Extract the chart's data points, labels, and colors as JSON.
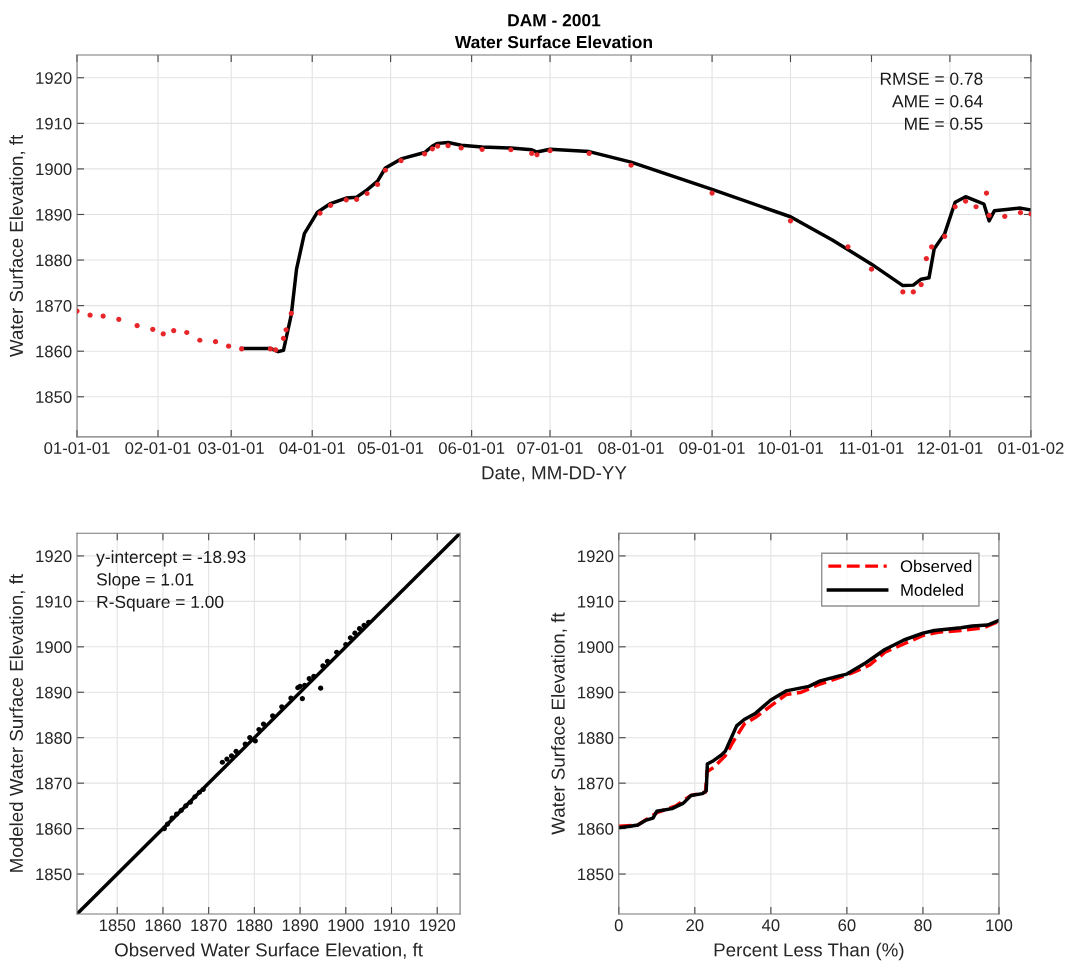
{
  "chart_data": [
    {
      "type": "line",
      "title": "DAM - 2001",
      "subtitle": "Water Surface Elevation",
      "xlabel": "Date, MM-DD-YY",
      "ylabel": "Water Surface Elevation, ft",
      "annotations": [
        "RMSE = 0.78",
        "AME = 0.64",
        "ME = 0.55"
      ],
      "xlim": [
        "2001-01-01",
        "2002-01-01"
      ],
      "xticks": [
        {
          "value": "2001-01-01",
          "label": "01-01-01"
        },
        {
          "value": "2001-02-01",
          "label": "02-01-01"
        },
        {
          "value": "2001-03-01",
          "label": "03-01-01"
        },
        {
          "value": "2001-04-01",
          "label": "04-01-01"
        },
        {
          "value": "2001-05-01",
          "label": "05-01-01"
        },
        {
          "value": "2001-06-01",
          "label": "06-01-01"
        },
        {
          "value": "2001-07-01",
          "label": "07-01-01"
        },
        {
          "value": "2001-08-01",
          "label": "08-01-01"
        },
        {
          "value": "2001-09-01",
          "label": "09-01-01"
        },
        {
          "value": "2001-10-01",
          "label": "10-01-01"
        },
        {
          "value": "2001-11-01",
          "label": "11-01-01"
        },
        {
          "value": "2001-12-01",
          "label": "12-01-01"
        },
        {
          "value": "2002-01-01",
          "label": "01-01-02"
        }
      ],
      "ylim": [
        1841.2,
        1925
      ],
      "yticks": [
        1850,
        1860,
        1870,
        1880,
        1890,
        1900,
        1910,
        1920
      ],
      "grid": true,
      "series": [
        {
          "color": "#000000",
          "line_style": "solid",
          "x": [
            "2001-03-05",
            "2001-03-16",
            "2001-03-19",
            "2001-03-21",
            "2001-03-24",
            "2001-03-26",
            "2001-03-29",
            "2001-04-03",
            "2001-04-08",
            "2001-04-14",
            "2001-04-18",
            "2001-04-22",
            "2001-04-26",
            "2001-04-29",
            "2001-05-05",
            "2001-05-14",
            "2001-05-17",
            "2001-05-19",
            "2001-05-23",
            "2001-05-28",
            "2001-06-05",
            "2001-06-16",
            "2001-06-24",
            "2001-06-26",
            "2001-07-01",
            "2001-07-16",
            "2001-08-01",
            "2001-09-01",
            "2001-10-01",
            "2001-10-17",
            "2001-11-01",
            "2001-11-13",
            "2001-11-17",
            "2001-11-20",
            "2001-11-23",
            "2001-11-25",
            "2001-11-29",
            "2001-12-03",
            "2001-12-07",
            "2001-12-11",
            "2001-12-14",
            "2001-12-16",
            "2001-12-18",
            "2001-12-28",
            "2002-01-01"
          ],
          "values": [
            1860.6,
            1860.6,
            1859.9,
            1860.2,
            1868,
            1878,
            1885.8,
            1890.5,
            1892.4,
            1893.6,
            1893.8,
            1895.4,
            1897.3,
            1900.2,
            1902.2,
            1903.6,
            1905,
            1905.6,
            1905.8,
            1905.2,
            1904.8,
            1904.6,
            1904.2,
            1903.7,
            1904.3,
            1903.8,
            1901.5,
            1895.5,
            1889.5,
            1884.4,
            1879.1,
            1874.4,
            1874.5,
            1875.8,
            1876.1,
            1882.5,
            1885.8,
            1892.7,
            1893.9,
            1893,
            1892.3,
            1888.6,
            1890.8,
            1891.4,
            1891
          ]
        },
        {
          "type": "scatter",
          "color": "#e8262a",
          "marker": "circle",
          "x": [
            "2001-01-01",
            "2001-01-06",
            "2001-01-11",
            "2001-01-17",
            "2001-01-24",
            "2001-01-30",
            "2001-02-03",
            "2001-02-07",
            "2001-02-12",
            "2001-02-17",
            "2001-02-23",
            "2001-02-28",
            "2001-03-05",
            "2001-03-16",
            "2001-03-18",
            "2001-03-21",
            "2001-03-22",
            "2001-03-24",
            "2001-04-04",
            "2001-04-08",
            "2001-04-14",
            "2001-04-18",
            "2001-04-22",
            "2001-04-26",
            "2001-04-29",
            "2001-05-05",
            "2001-05-14",
            "2001-05-17",
            "2001-05-19",
            "2001-05-23",
            "2001-05-28",
            "2001-06-05",
            "2001-06-16",
            "2001-06-24",
            "2001-06-26",
            "2001-07-01",
            "2001-07-16",
            "2001-08-01",
            "2001-09-01",
            "2001-10-01",
            "2001-10-23",
            "2001-11-01",
            "2001-11-13",
            "2001-11-17",
            "2001-11-20",
            "2001-11-22",
            "2001-11-24",
            "2001-11-29",
            "2001-12-03",
            "2001-12-07",
            "2001-12-11",
            "2001-12-15",
            "2001-12-16",
            "2001-12-22",
            "2001-12-28",
            "2002-01-01"
          ],
          "values": [
            1868.8,
            1867.9,
            1867.7,
            1867.0,
            1865.6,
            1864.8,
            1863.8,
            1864.5,
            1864.1,
            1862.4,
            1862.1,
            1861.1,
            1860.5,
            1860.5,
            1860.3,
            1862.8,
            1864.7,
            1868.3,
            1890.3,
            1892.0,
            1893.2,
            1893.3,
            1894.6,
            1896.6,
            1899.7,
            1901.8,
            1903.3,
            1904.4,
            1905.0,
            1905.1,
            1904.6,
            1904.3,
            1904.2,
            1903.4,
            1903.1,
            1904.0,
            1903.4,
            1900.8,
            1894.7,
            1888.6,
            1882.9,
            1878.0,
            1873.0,
            1873.0,
            1874.6,
            1880.3,
            1882.9,
            1885.2,
            1891.7,
            1892.9,
            1891.7,
            1894.7,
            1889.8,
            1889.6,
            1890.4,
            1890.1
          ]
        }
      ]
    },
    {
      "type": "scatter",
      "xlabel": "Observed Water Surface Elevation, ft",
      "ylabel": "Modeled Water Surface Elevation, ft",
      "annotations": [
        "y-intercept = -18.93",
        "Slope = 1.01",
        "R-Square = 1.00"
      ],
      "xlim": [
        1841.2,
        1925
      ],
      "xticks": [
        1850,
        1860,
        1870,
        1880,
        1890,
        1900,
        1910,
        1920
      ],
      "ylim": [
        1841.2,
        1925
      ],
      "yticks": [
        1850,
        1860,
        1870,
        1880,
        1890,
        1900,
        1910,
        1920
      ],
      "grid": true,
      "series": [
        {
          "color": "#000000",
          "marker": "circle",
          "x": [
            1860.3,
            1861,
            1862,
            1863,
            1864,
            1865,
            1866,
            1867,
            1868,
            1868.8,
            1873,
            1874,
            1875,
            1876,
            1878,
            1879,
            1880.2,
            1881,
            1882,
            1884,
            1886,
            1888,
            1889.5,
            1890,
            1890.5,
            1891,
            1892,
            1893,
            1894.5,
            1895,
            1896,
            1898,
            1900,
            1901,
            1902,
            1903,
            1904,
            1905
          ],
          "values": [
            1860,
            1861,
            1862.3,
            1863.2,
            1864,
            1865,
            1865.8,
            1867,
            1868,
            1868.6,
            1874.6,
            1875.3,
            1876,
            1877,
            1878.6,
            1880,
            1879.3,
            1881.8,
            1883,
            1884.8,
            1886.8,
            1888.7,
            1891,
            1891.3,
            1888.6,
            1891.5,
            1893,
            1893.5,
            1890.9,
            1895.8,
            1896.8,
            1898.8,
            1900.5,
            1902,
            1903,
            1904,
            1904.7,
            1905.4
          ]
        },
        {
          "type": "line",
          "color": "#000000",
          "line_style": "solid",
          "x": [
            1841.2,
            1925
          ],
          "values": [
            1841.2,
            1925
          ]
        }
      ]
    },
    {
      "type": "line",
      "xlabel": "Percent Less Than (%)",
      "ylabel": "Water Surface Elevation, ft",
      "xlim": [
        0,
        100
      ],
      "xticks": [
        0,
        20,
        40,
        60,
        80,
        100
      ],
      "ylim": [
        1841.2,
        1925
      ],
      "yticks": [
        1850,
        1860,
        1870,
        1880,
        1890,
        1900,
        1910,
        1920
      ],
      "grid": true,
      "legend": "top right",
      "series": [
        {
          "name": "Observed",
          "color": "#ff0000",
          "line_style": "dashed",
          "x": [
            0,
            5,
            10,
            15,
            19,
            22.8,
            23.2,
            25,
            28,
            30,
            33,
            36,
            40,
            44,
            48,
            52,
            58,
            62,
            66,
            70,
            76,
            80,
            84,
            90,
            96,
            100
          ],
          "values": [
            1860.5,
            1860.8,
            1863.5,
            1865,
            1867.3,
            1868,
            1872.5,
            1873.5,
            1876,
            1879,
            1883,
            1884.5,
            1887,
            1889.5,
            1890,
            1891.5,
            1893.2,
            1894.5,
            1896,
            1898.8,
            1901,
            1902.5,
            1903.2,
            1903.6,
            1904.2,
            1905.6
          ]
        },
        {
          "name": "Modeled",
          "color": "#000000",
          "line_style": "solid",
          "x": [
            0,
            3,
            5,
            7,
            9,
            10,
            14,
            17,
            19,
            22,
            23,
            23.3,
            25,
            27,
            28,
            31,
            33,
            36,
            40,
            44,
            50,
            53,
            58,
            60,
            65,
            70,
            75,
            80,
            83,
            90,
            93,
            97,
            100
          ],
          "values": [
            1860.2,
            1860.5,
            1860.8,
            1861.8,
            1862.3,
            1863.8,
            1864.4,
            1865.6,
            1867.3,
            1867.7,
            1868.3,
            1874.2,
            1875,
            1876.2,
            1877,
            1882.6,
            1884,
            1885.4,
            1888.3,
            1890.3,
            1891.3,
            1892.5,
            1893.6,
            1894,
            1896.5,
            1899.4,
            1901.5,
            1903,
            1903.6,
            1904.2,
            1904.6,
            1904.8,
            1905.8
          ]
        }
      ]
    }
  ]
}
